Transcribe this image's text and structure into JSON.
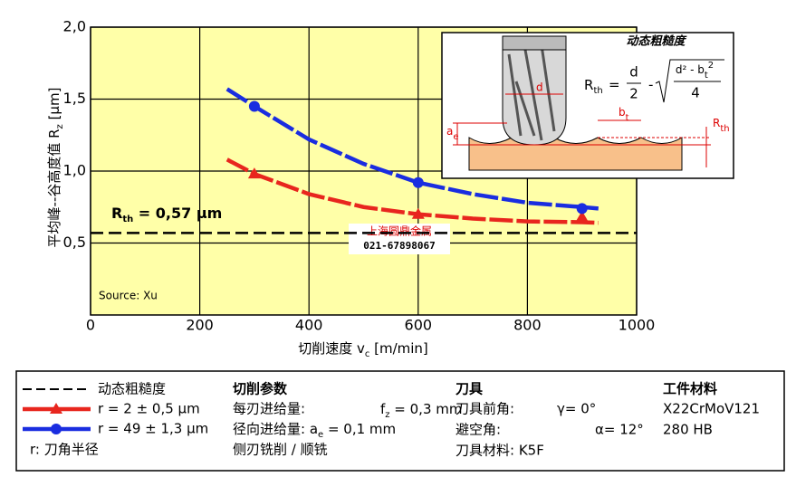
{
  "chart_data": {
    "type": "line",
    "x_label": {
      "main": "切削速度 v",
      "sub": "c",
      "rest": " [m/min]"
    },
    "y_label": {
      "main": "平均峰--谷高度值 R",
      "sub": "z",
      "rest": " [µm]"
    },
    "xlim": [
      0,
      1000
    ],
    "xticks": [
      0,
      200,
      400,
      600,
      800,
      1000
    ],
    "ylim": [
      0,
      2
    ],
    "yticks": [
      {
        "value": 0.5,
        "label": "0,5"
      },
      {
        "value": 1.0,
        "label": "1,0"
      },
      {
        "value": 1.5,
        "label": "1,5"
      },
      {
        "value": 2.0,
        "label": "2,0"
      }
    ],
    "grid": true,
    "series": [
      {
        "name": "r = 2 ± 0,5 µm",
        "color": "#e8261e",
        "marker": "triangle",
        "x": [
          300,
          600,
          900
        ],
        "values": [
          0.98,
          0.7,
          0.68
        ],
        "fit_x": [
          250,
          300,
          400,
          500,
          600,
          700,
          800,
          900,
          930
        ],
        "fit_values": [
          1.08,
          0.98,
          0.84,
          0.75,
          0.7,
          0.67,
          0.65,
          0.645,
          0.64
        ]
      },
      {
        "name": "r = 49 ± 1,3 µm",
        "color": "#1a2de0",
        "marker": "circle",
        "x": [
          300,
          600,
          900
        ],
        "values": [
          1.45,
          0.92,
          0.74
        ],
        "fit_x": [
          250,
          300,
          400,
          500,
          600,
          700,
          800,
          900,
          930
        ],
        "fit_values": [
          1.57,
          1.45,
          1.22,
          1.05,
          0.92,
          0.84,
          0.78,
          0.75,
          0.74
        ]
      }
    ],
    "reference_line": {
      "name": "动态粗糙度",
      "value": 0.57,
      "label_main": "R",
      "label_sub": "th",
      "label_rest": " = 0,57 µm"
    },
    "source": "Source: Xu",
    "watermark": [
      "上海圆鼎金属",
      "021-67898067"
    ]
  },
  "inset": {
    "title": "动态粗糙度",
    "formula": {
      "lhs": "R",
      "lhs_sub": "th",
      "eq": "=",
      "num1": "d",
      "den1": "2",
      "minus": "-",
      "num2": "d² - b",
      "num2_sub": "t",
      "num2_sup": "2",
      "den2": "4"
    },
    "labels": {
      "d": "d",
      "bt": "b",
      "bt_sub": "t",
      "ae": "a",
      "ae_sub": "e",
      "rth": "R",
      "rth_sub": "th"
    }
  },
  "legend_panel": {
    "radius_note": "r:  刀角半径",
    "cutting": {
      "title": "切削参数",
      "feed_label": "每刃进给量:",
      "feed_symbol": "f",
      "feed_sub": "z",
      "feed_value": " = 0,3 mm",
      "radial_label": "径向进给量: a",
      "radial_sub": "e",
      "radial_value": " = 0,1 mm",
      "mode": "侧刃铣削 / 顺铣"
    },
    "tool": {
      "title": "刀具",
      "rake_label": "刀具前角:",
      "rake_value": "γ= 0°",
      "clearance_label": "避空角:",
      "clearance_value": "α= 12°",
      "material": "刀具材料: K5F"
    },
    "workpiece": {
      "title": "工件材料",
      "material": "X22CrMoV121",
      "hardness": "280 HB"
    }
  }
}
